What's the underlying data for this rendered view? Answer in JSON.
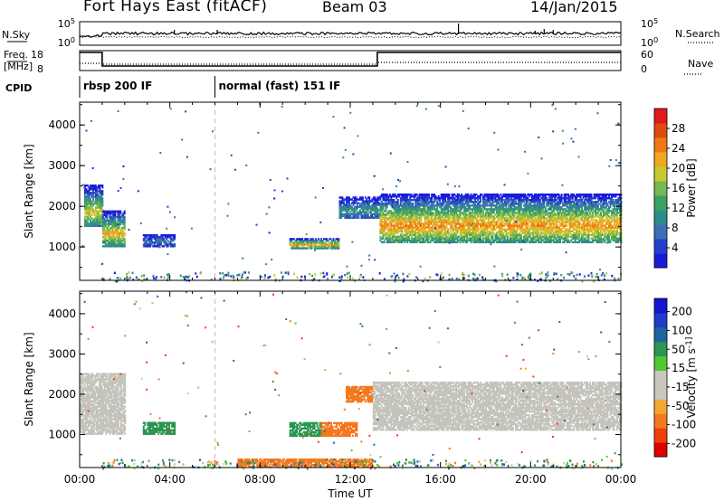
{
  "header": {
    "station": "Fort Hays East (fitACF)",
    "beam": "Beam 03",
    "date": "14/Jan/2015"
  },
  "summary_panels": {
    "nsky_label": "N.Sky",
    "nsky_tick_top": "10^5",
    "nsky_tick_bottom": "10^0",
    "nsearch_label": "N.Search",
    "nsearch_tick_top": "10^5",
    "nsearch_tick_bottom": "10^0",
    "freq_label_1": "Freq.",
    "freq_label_2": "[MHz]",
    "freq_tick_top": "18",
    "freq_tick_bottom": "8",
    "nave_label": "Nave",
    "nave_tick_top": "60",
    "nave_tick_bottom": "0",
    "cpid_label": "CPID",
    "cpid_segments": [
      {
        "start_hour": 0,
        "end_hour": 6,
        "label": "rbsp 200 IF"
      },
      {
        "start_hour": 6,
        "end_hour": 24,
        "label": "normal (fast) 151 IF"
      }
    ]
  },
  "colors": {
    "power_scale": [
      "#1a1adc",
      "#2440c8",
      "#3c6eb4",
      "#2f8c8c",
      "#3ca060",
      "#78b850",
      "#c8c832",
      "#f0a81e",
      "#f07814",
      "#e04a10",
      "#e01a1a"
    ],
    "velocity_scale": [
      "#e00000",
      "#f03c0a",
      "#f5781e",
      "#f5a532",
      "#c8c8c0",
      "#c8c8c0",
      "#50c832",
      "#2a9650",
      "#1e64a0",
      "#1e3cc8",
      "#1414d2"
    ],
    "ground_scatter": "#c4c4bc"
  },
  "chart_data": [
    {
      "type": "heatmap",
      "panel": "power",
      "x_axis": {
        "range_hours": [
          0,
          24
        ],
        "ticks": [
          "00:00",
          "04:00",
          "08:00",
          "12:00",
          "16:00",
          "20:00",
          "00:00"
        ],
        "label": "Time UT"
      },
      "ylabel": "Slant Range [km]",
      "ylim": [
        180,
        4560
      ],
      "yticks": [
        "1000",
        "2000",
        "3000",
        "4000"
      ],
      "colorbar": {
        "label": "Power [dB]",
        "min": 0,
        "max": 32,
        "ticks": [
          "4",
          "8",
          "12",
          "16",
          "20",
          "24",
          "28"
        ]
      },
      "echo_regions": [
        {
          "start_hour": 0.2,
          "end_hour": 1.0,
          "range_low_km": 1500,
          "range_high_km": 2500,
          "peak_db": 20
        },
        {
          "start_hour": 1.0,
          "end_hour": 2.0,
          "range_low_km": 1000,
          "range_high_km": 1900,
          "peak_db": 22
        },
        {
          "start_hour": 2.8,
          "end_hour": 4.2,
          "range_low_km": 1000,
          "range_high_km": 1300,
          "peak_db": 8
        },
        {
          "start_hour": 9.3,
          "end_hour": 11.5,
          "range_low_km": 950,
          "range_high_km": 1200,
          "peak_db": 22
        },
        {
          "start_hour": 11.5,
          "end_hour": 13.3,
          "range_low_km": 1700,
          "range_high_km": 2200,
          "peak_db": 12
        },
        {
          "start_hour": 13.3,
          "end_hour": 24.0,
          "range_low_km": 1100,
          "range_high_km": 2300,
          "peak_db": 24
        }
      ]
    },
    {
      "type": "heatmap",
      "panel": "velocity",
      "x_axis": {
        "range_hours": [
          0,
          24
        ],
        "ticks": [
          "00:00",
          "04:00",
          "08:00",
          "12:00",
          "16:00",
          "20:00",
          "00:00"
        ],
        "label": "Time UT"
      },
      "ylabel": "Slant Range [km]",
      "ylim": [
        180,
        4560
      ],
      "yticks": [
        "1000",
        "2000",
        "3000",
        "4000"
      ],
      "colorbar": {
        "label": "Velocity [m s^-1]",
        "ticks": [
          "200",
          "100",
          "50",
          "15",
          "-15",
          "-50",
          "-100",
          "-200"
        ]
      },
      "echo_regions": [
        {
          "start_hour": 0.0,
          "end_hour": 2.0,
          "range_low_km": 1000,
          "range_high_km": 2500,
          "velocity": 0,
          "ground_scatter": true
        },
        {
          "start_hour": 2.8,
          "end_hour": 4.2,
          "range_low_km": 1000,
          "range_high_km": 1300,
          "velocity": 60
        },
        {
          "start_hour": 9.3,
          "end_hour": 10.7,
          "range_low_km": 950,
          "range_high_km": 1300,
          "velocity": 60
        },
        {
          "start_hour": 10.7,
          "end_hour": 12.3,
          "range_low_km": 950,
          "range_high_km": 1300,
          "velocity": -60
        },
        {
          "start_hour": 11.8,
          "end_hour": 13.0,
          "range_low_km": 1800,
          "range_high_km": 2200,
          "velocity": -60
        },
        {
          "start_hour": 13.0,
          "end_hour": 24.0,
          "range_low_km": 1100,
          "range_high_km": 2300,
          "velocity": 0,
          "ground_scatter": true
        },
        {
          "start_hour": 7.0,
          "end_hour": 13.0,
          "range_low_km": 180,
          "range_high_km": 400,
          "velocity": -60
        }
      ]
    }
  ]
}
